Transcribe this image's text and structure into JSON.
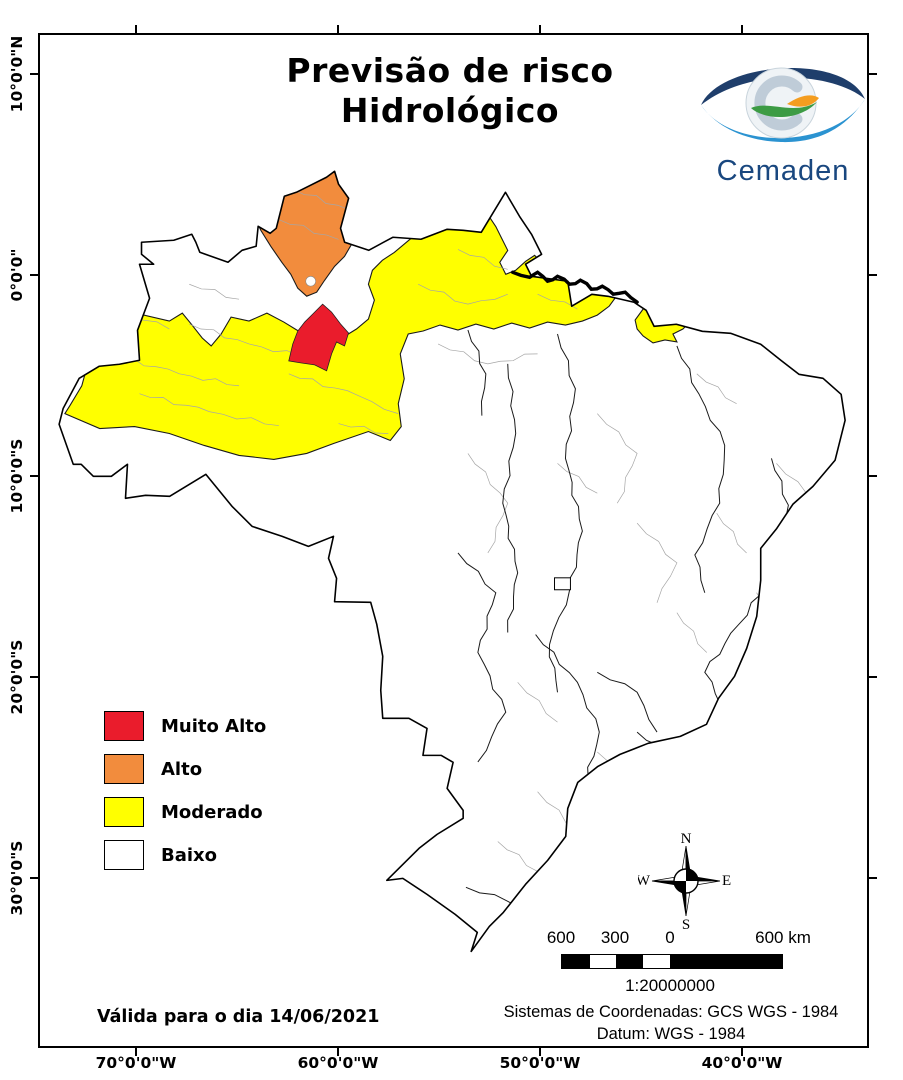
{
  "title": {
    "line1": "Previsão de risco",
    "line2": "Hidrológico"
  },
  "logo": {
    "name": "Cemaden"
  },
  "legend": {
    "items": [
      {
        "label": "Muito Alto",
        "color": "#EA1C2C"
      },
      {
        "label": "Alto",
        "color": "#F28C3D"
      },
      {
        "label": "Moderado",
        "color": "#FFFF00"
      },
      {
        "label": "Baixo",
        "color": "#FFFFFF"
      }
    ]
  },
  "compass": {
    "north": "N",
    "south": "S",
    "east": "E",
    "west": "W"
  },
  "scalebar": {
    "tick_labels": [
      "600",
      "300",
      "0",
      "600 km"
    ],
    "ratio": "1:20000000"
  },
  "validity": "Válida para o dia 14/06/2021",
  "coordinate_system": {
    "line1": "Sistemas de Coordenadas: GCS WGS - 1984",
    "line2": "Datum: WGS - 1984"
  },
  "axes": {
    "lat_labels": [
      "10°0'0\"N",
      "0°0'0\"",
      "10°0'0\"S",
      "20°0'0\"S",
      "30°0'0\"S"
    ],
    "lon_labels": [
      "70°0'0\"W",
      "60°0'0\"W",
      "50°0'0\"W",
      "40°0'0\"W"
    ]
  }
}
